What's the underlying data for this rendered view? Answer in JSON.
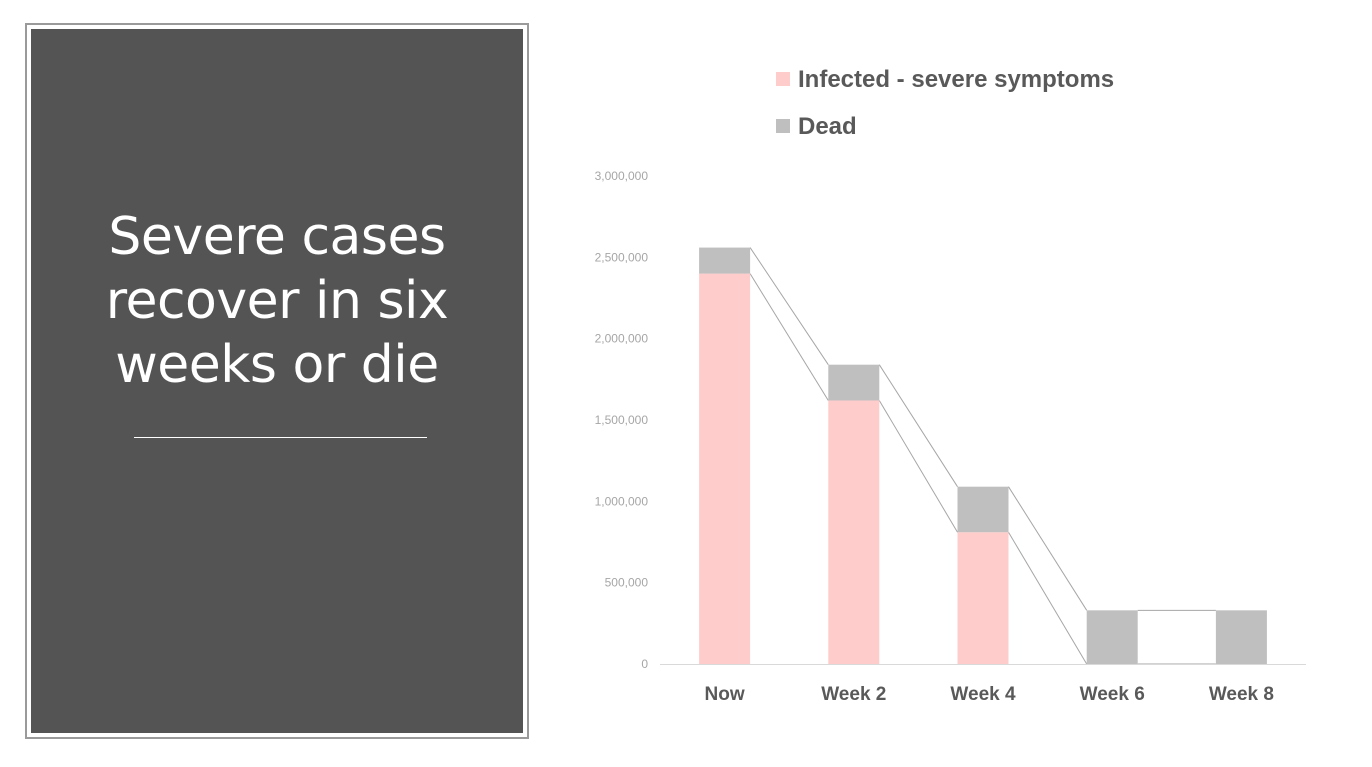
{
  "slide": {
    "title_lines": [
      "Severe cases",
      "recover in six",
      "weeks or die"
    ]
  },
  "colors": {
    "panel_background": "#545454",
    "infected": "#ffcccc",
    "dead": "#bfbfbf",
    "connector": "#a6a6a6",
    "axis": "#d9d9d9",
    "text": "#595959",
    "tick": "#a6a6a6"
  },
  "chart_data": {
    "type": "bar",
    "stacked": true,
    "categories": [
      "Now",
      "Week 2",
      "Week 4",
      "Week 6",
      "Week 8"
    ],
    "series": [
      {
        "name": "Infected - severe symptoms",
        "color": "#ffcccc",
        "values": [
          2400000,
          1620000,
          810000,
          0,
          0
        ]
      },
      {
        "name": "Dead",
        "color": "#bfbfbf",
        "values": [
          160000,
          220000,
          280000,
          330000,
          330000
        ]
      }
    ],
    "y_ticks": [
      "0",
      "500,000",
      "1,000,000",
      "1,500,000",
      "2,000,000",
      "2,500,000",
      "3,000,000"
    ],
    "ylim": [
      0,
      3000000
    ],
    "series_lines": true,
    "legend_position": "top-left",
    "title": "",
    "xlabel": "",
    "ylabel": ""
  }
}
